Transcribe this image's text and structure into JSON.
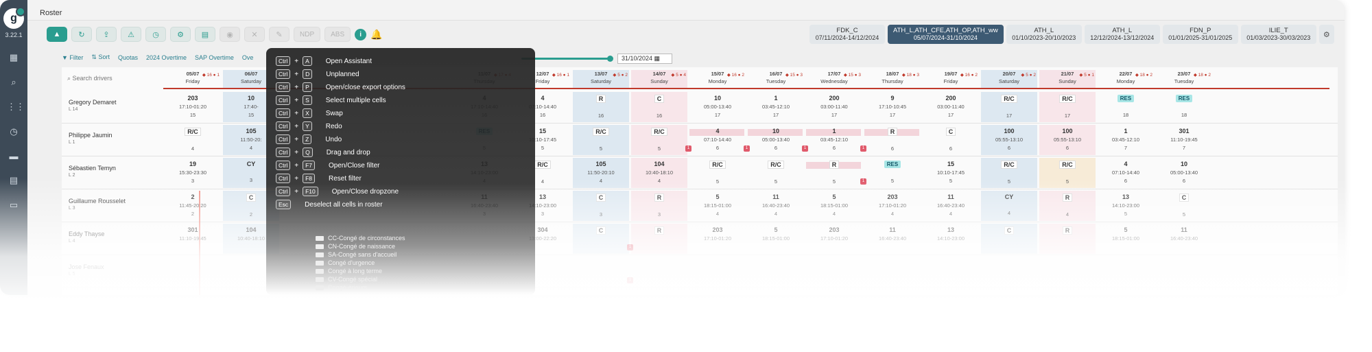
{
  "app": {
    "version": "3.22.1",
    "page_title": "Roster"
  },
  "toolbar": {
    "ndp_label": "NDP",
    "abs_label": "ABS"
  },
  "plan_tabs": [
    {
      "name": "FDK_C",
      "dates": "07/11/2024-14/12/2024"
    },
    {
      "name": "ATH_L,ATH_CFE,ATH_OP,ATH_ww",
      "dates": "05/07/2024-31/10/2024"
    },
    {
      "name": "ATH_L",
      "dates": "01/10/2023-20/10/2023"
    },
    {
      "name": "ATH_L",
      "dates": "12/12/2024-13/12/2024"
    },
    {
      "name": "FDN_P",
      "dates": "01/01/2025-31/01/2025"
    },
    {
      "name": "ILIE_T",
      "dates": "01/03/2023-30/03/2023"
    }
  ],
  "filters": {
    "filter": "Filter",
    "sort": "Sort",
    "quotas": "Quotas",
    "overtime_2024": "2024 Overtime",
    "sap_overtime": "SAP Overtime",
    "other": "Ove"
  },
  "date_end": "31/10/2024",
  "search_placeholder": "Search drivers",
  "days": [
    {
      "date": "05/07",
      "dow": "Friday",
      "type": "wd",
      "n1": "16",
      "n2": "1"
    },
    {
      "date": "06/07",
      "dow": "Saturday",
      "type": "we",
      "n1": "",
      "n2": ""
    },
    {
      "date": "",
      "dow": "",
      "type": "hidden",
      "n1": "",
      "n2": ""
    },
    {
      "date": "",
      "dow": "",
      "type": "hidden",
      "n1": "",
      "n2": ""
    },
    {
      "date": "",
      "dow": "",
      "type": "hidden",
      "n1": "",
      "n2": ""
    },
    {
      "date": "11/07",
      "dow": "Thursday",
      "type": "wd",
      "n1": "17",
      "n2": "4"
    },
    {
      "date": "12/07",
      "dow": "Friday",
      "type": "wd",
      "n1": "16",
      "n2": "1"
    },
    {
      "date": "13/07",
      "dow": "Saturday",
      "type": "we",
      "n1": "5",
      "n2": "2"
    },
    {
      "date": "14/07",
      "dow": "Sunday",
      "type": "su",
      "n1": "5",
      "n2": "4"
    },
    {
      "date": "15/07",
      "dow": "Monday",
      "type": "wd",
      "n1": "16",
      "n2": "2"
    },
    {
      "date": "16/07",
      "dow": "Tuesday",
      "type": "wd",
      "n1": "15",
      "n2": "3"
    },
    {
      "date": "17/07",
      "dow": "Wednesday",
      "type": "wd",
      "n1": "15",
      "n2": "3"
    },
    {
      "date": "18/07",
      "dow": "Thursday",
      "type": "wd",
      "n1": "18",
      "n2": "3"
    },
    {
      "date": "19/07",
      "dow": "Friday",
      "type": "wd",
      "n1": "16",
      "n2": "2"
    },
    {
      "date": "20/07",
      "dow": "Saturday",
      "type": "we",
      "n1": "5",
      "n2": "2"
    },
    {
      "date": "21/07",
      "dow": "Sunday",
      "type": "su",
      "n1": "5",
      "n2": "1"
    },
    {
      "date": "22/07",
      "dow": "Monday",
      "type": "wd",
      "n1": "18",
      "n2": "2"
    },
    {
      "date": "23/07",
      "dow": "Tuesday",
      "type": "wd",
      "n1": "18",
      "n2": "2"
    }
  ],
  "drivers": [
    {
      "name": "Gregory Demaret",
      "sub": "L 14",
      "cells": [
        [
          "203",
          "17:10-01:20"
        ],
        [
          "10",
          "17:40-"
        ],
        [
          "",
          "",
          ""
        ],
        [
          "",
          ""
        ],
        [
          "",
          ""
        ],
        [
          "4",
          "17:10-14:40"
        ],
        [
          "4",
          "07:10-14:40"
        ],
        [
          "R",
          ""
        ],
        [
          "C",
          ""
        ],
        [
          "10",
          "05:00-13:40"
        ],
        [
          "1",
          "03:45-12:10"
        ],
        [
          "200",
          "03:00-11:40"
        ],
        [
          "9",
          "17:10-10:45"
        ],
        [
          "200",
          "03:00-11:40"
        ],
        [
          "R/C",
          ""
        ],
        [
          "R/C",
          ""
        ],
        [
          "RES",
          ""
        ],
        [
          "RES",
          ""
        ]
      ],
      "counts": [
        "15",
        "15",
        "",
        "",
        "",
        "16",
        "16",
        "16",
        "16",
        "17",
        "17",
        "17",
        "17",
        "17",
        "17",
        "17",
        "18",
        "18"
      ]
    },
    {
      "name": "Philippe Jaumin",
      "sub": "L 1",
      "cells": [
        [
          "R/C",
          ""
        ],
        [
          "105",
          "11:50-20:"
        ],
        [
          "",
          ""
        ],
        [
          "",
          ""
        ],
        [
          "",
          ""
        ],
        [
          "RES",
          ""
        ],
        [
          "15",
          "10:10-17:45"
        ],
        [
          "R/C",
          ""
        ],
        [
          "R/C",
          ""
        ],
        [
          "4",
          "07:10-14:40"
        ],
        [
          "10",
          "05:00-13:40"
        ],
        [
          "1",
          "03:45-12:10"
        ],
        [
          "R",
          ""
        ],
        [
          "C",
          ""
        ],
        [
          "100",
          "05:55-13:10"
        ],
        [
          "100",
          "05:55-13:10"
        ],
        [
          "1",
          "03:45-12:10"
        ],
        [
          "301",
          "11:10-19:45"
        ]
      ],
      "counts": [
        "4",
        "4",
        "",
        "",
        "",
        "5",
        "5",
        "5",
        "5",
        "6",
        "6",
        "6",
        "6",
        "6",
        "6",
        "6",
        "7",
        "7"
      ]
    },
    {
      "name": "Sébastien Temyn",
      "sub": "L 2",
      "cells": [
        [
          "19",
          "15:30-23:30"
        ],
        [
          "CY",
          ""
        ],
        [
          "",
          ""
        ],
        [
          "",
          ""
        ],
        [
          "",
          ""
        ],
        [
          "13",
          "14:10-23:00"
        ],
        [
          "R/C",
          ""
        ],
        [
          "105",
          "11:50-20:10"
        ],
        [
          "104",
          "10:40-18:10"
        ],
        [
          "R/C",
          ""
        ],
        [
          "R/C",
          ""
        ],
        [
          "R",
          ""
        ],
        [
          "RES",
          ""
        ],
        [
          "15",
          "10:10-17:45"
        ],
        [
          "R/C",
          ""
        ],
        [
          "R/C",
          ""
        ],
        [
          "4",
          "07:10-14:40"
        ],
        [
          "10",
          "05:00-13:40"
        ]
      ],
      "counts": [
        "3",
        "3",
        "",
        "",
        "",
        "4",
        "4",
        "4",
        "4",
        "5",
        "5",
        "5",
        "5",
        "5",
        "5",
        "5",
        "6",
        "6"
      ]
    },
    {
      "name": "Guillaume Rousselet",
      "sub": "L 3",
      "cells": [
        [
          "2",
          "11:45-20:20"
        ],
        [
          "C",
          ""
        ],
        [
          "",
          ""
        ],
        [
          "",
          ""
        ],
        [
          "",
          ""
        ],
        [
          "11",
          "16:40-23:40"
        ],
        [
          "13",
          "14:10-23:00"
        ],
        [
          "C",
          ""
        ],
        [
          "R",
          ""
        ],
        [
          "5",
          "18:15-01:00"
        ],
        [
          "11",
          "16:40-23:40"
        ],
        [
          "5",
          "18:15-01:00"
        ],
        [
          "203",
          "17:10-01:20"
        ],
        [
          "11",
          "16:40-23:40"
        ],
        [
          "CY",
          ""
        ],
        [
          "R",
          ""
        ],
        [
          "13",
          "14:10-23:00"
        ],
        [
          "C",
          ""
        ]
      ],
      "counts": [
        "2",
        "2",
        "",
        "",
        "",
        "3",
        "3",
        "3",
        "3",
        "4",
        "4",
        "4",
        "4",
        "4",
        "4",
        "4",
        "5",
        "5"
      ]
    },
    {
      "name": "Eddy Thayse",
      "sub": "L 4",
      "cells": [
        [
          "301",
          "11:10-19:45"
        ],
        [
          "104",
          "10:40-18:10"
        ],
        [
          "",
          ""
        ],
        [
          "",
          ""
        ],
        [
          "",
          ""
        ],
        [
          "",
          ""
        ],
        [
          "304",
          "13:00-22:20"
        ],
        [
          "C",
          ""
        ],
        [
          "R",
          ""
        ],
        [
          "203",
          "17:10-01:20"
        ],
        [
          "5",
          "18:15-01:00"
        ],
        [
          "203",
          "17:10-01:20"
        ],
        [
          "11",
          "16:40-23:40"
        ],
        [
          "13",
          "14:10-23:00"
        ],
        [
          "C",
          ""
        ],
        [
          "R",
          ""
        ],
        [
          "5",
          "18:15-01:00"
        ],
        [
          "11",
          "16:40-23:40"
        ]
      ],
      "counts": []
    },
    {
      "name": "Jose Fenaux",
      "sub": "L 5",
      "cells": [],
      "counts": []
    }
  ],
  "shortcuts": [
    {
      "keys": [
        "Ctrl",
        "A"
      ],
      "label": "Open Assistant"
    },
    {
      "keys": [
        "Ctrl",
        "D"
      ],
      "label": "Unplanned"
    },
    {
      "keys": [
        "Ctrl",
        "P"
      ],
      "label": "Open/close export options"
    },
    {
      "keys": [
        "Ctrl",
        "S"
      ],
      "label": "Select multiple cells"
    },
    {
      "keys": [
        "Ctrl",
        "X"
      ],
      "label": "Swap"
    },
    {
      "keys": [
        "Ctrl",
        "Y"
      ],
      "label": "Redo"
    },
    {
      "keys": [
        "Ctrl",
        "Z"
      ],
      "label": "Undo"
    },
    {
      "keys": [
        "Ctrl",
        "Q"
      ],
      "label": "Drag and drop"
    },
    {
      "keys": [
        "Ctrl",
        "F7"
      ],
      "label": "Open/Close filter"
    },
    {
      "keys": [
        "Ctrl",
        "F8"
      ],
      "label": "Reset filter"
    },
    {
      "keys": [
        "Ctrl",
        "F10"
      ],
      "label": "Open/Close dropzone"
    },
    {
      "keys": [
        "Esc"
      ],
      "label": "Deselect all cells in roster"
    }
  ],
  "absences": [
    "CC-Congé de circonstances",
    "CN-Congé de naissance",
    "SA-Congé sans d'accueil",
    "Congé d'urgence",
    "Congé à long terme",
    "CV-Congé spécial",
    "Congé-érieurs"
  ],
  "colors": {
    "accent": "#2a9d8f",
    "sidebar": "#3d4a57",
    "weekend": "#dde8f1",
    "sunday": "#f6e3e8",
    "alert": "#e05a6b",
    "today_line": "#c0392b"
  }
}
